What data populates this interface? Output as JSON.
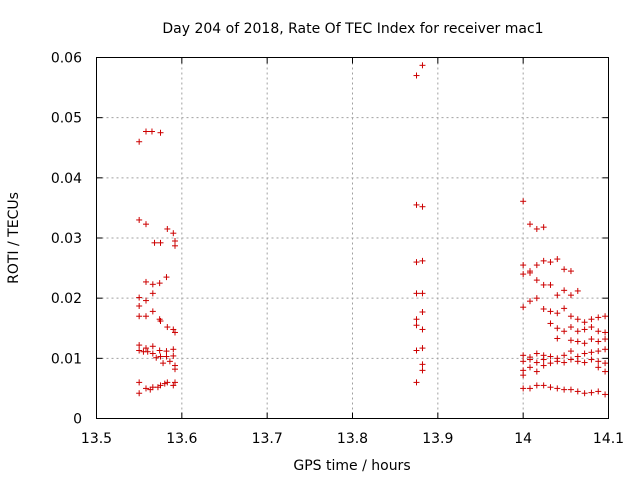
{
  "chart_data": {
    "type": "scatter",
    "title": "Day 204 of 2018, Rate Of TEC Index for receiver mac1",
    "xlabel": "GPS time / hours",
    "ylabel": "ROTI / TECUs",
    "xlim": [
      13.5,
      14.1
    ],
    "ylim": [
      0,
      0.06
    ],
    "x_ticks": [
      "13.5",
      "13.6",
      "13.7",
      "13.8",
      "13.9",
      "14",
      "14.1"
    ],
    "y_ticks": [
      "0",
      "0.01",
      "0.02",
      "0.03",
      "0.04",
      "0.05",
      "0.06"
    ],
    "grid": true,
    "marker": "+",
    "series": [
      {
        "name": "mac1",
        "color": "#cc0000",
        "points": [
          [
            13.55,
            0.046
          ],
          [
            13.558,
            0.0477
          ],
          [
            13.565,
            0.0477
          ],
          [
            13.575,
            0.0475
          ],
          [
            13.55,
            0.033
          ],
          [
            13.558,
            0.0323
          ],
          [
            13.568,
            0.0292
          ],
          [
            13.575,
            0.0292
          ],
          [
            13.583,
            0.0315
          ],
          [
            13.59,
            0.0308
          ],
          [
            13.592,
            0.0295
          ],
          [
            13.592,
            0.0287
          ],
          [
            13.558,
            0.0227
          ],
          [
            13.566,
            0.0223
          ],
          [
            13.574,
            0.0225
          ],
          [
            13.582,
            0.0235
          ],
          [
            13.566,
            0.0208
          ],
          [
            13.55,
            0.0201
          ],
          [
            13.558,
            0.0196
          ],
          [
            13.55,
            0.0187
          ],
          [
            13.566,
            0.0178
          ],
          [
            13.55,
            0.017
          ],
          [
            13.558,
            0.017
          ],
          [
            13.574,
            0.0165
          ],
          [
            13.575,
            0.0162
          ],
          [
            13.583,
            0.0152
          ],
          [
            13.59,
            0.0148
          ],
          [
            13.592,
            0.0143
          ],
          [
            13.55,
            0.0122
          ],
          [
            13.558,
            0.0117
          ],
          [
            13.566,
            0.012
          ],
          [
            13.574,
            0.0113
          ],
          [
            13.582,
            0.0112
          ],
          [
            13.59,
            0.0115
          ],
          [
            13.55,
            0.0113
          ],
          [
            13.555,
            0.0111
          ],
          [
            13.56,
            0.0111
          ],
          [
            13.566,
            0.0108
          ],
          [
            13.57,
            0.0101
          ],
          [
            13.575,
            0.0103
          ],
          [
            13.578,
            0.0092
          ],
          [
            13.582,
            0.0103
          ],
          [
            13.586,
            0.0095
          ],
          [
            13.59,
            0.0104
          ],
          [
            13.592,
            0.0088
          ],
          [
            13.592,
            0.0082
          ],
          [
            13.55,
            0.006
          ],
          [
            13.558,
            0.005
          ],
          [
            13.563,
            0.0048
          ],
          [
            13.566,
            0.0052
          ],
          [
            13.572,
            0.0052
          ],
          [
            13.575,
            0.0055
          ],
          [
            13.58,
            0.0058
          ],
          [
            13.583,
            0.006
          ],
          [
            13.59,
            0.0055
          ],
          [
            13.592,
            0.006
          ],
          [
            13.55,
            0.0042
          ],
          [
            13.875,
            0.057
          ],
          [
            13.882,
            0.0587
          ],
          [
            13.875,
            0.0355
          ],
          [
            13.882,
            0.0352
          ],
          [
            13.875,
            0.026
          ],
          [
            13.882,
            0.0262
          ],
          [
            13.875,
            0.0208
          ],
          [
            13.882,
            0.0208
          ],
          [
            13.875,
            0.0165
          ],
          [
            13.882,
            0.0177
          ],
          [
            13.875,
            0.0155
          ],
          [
            13.882,
            0.0148
          ],
          [
            13.875,
            0.0113
          ],
          [
            13.882,
            0.0117
          ],
          [
            13.882,
            0.009
          ],
          [
            13.882,
            0.008
          ],
          [
            13.875,
            0.006
          ],
          [
            14.0,
            0.0361
          ],
          [
            14.008,
            0.0323
          ],
          [
            14.016,
            0.0315
          ],
          [
            14.024,
            0.0318
          ],
          [
            14.0,
            0.0255
          ],
          [
            14.008,
            0.0245
          ],
          [
            14.016,
            0.0255
          ],
          [
            14.024,
            0.0262
          ],
          [
            14.032,
            0.026
          ],
          [
            14.04,
            0.0265
          ],
          [
            14.048,
            0.0248
          ],
          [
            14.056,
            0.0245
          ],
          [
            14.0,
            0.024
          ],
          [
            14.008,
            0.0242
          ],
          [
            14.016,
            0.023
          ],
          [
            14.024,
            0.0222
          ],
          [
            14.032,
            0.0222
          ],
          [
            14.04,
            0.0205
          ],
          [
            14.048,
            0.0213
          ],
          [
            14.056,
            0.0205
          ],
          [
            14.064,
            0.0212
          ],
          [
            14.0,
            0.0185
          ],
          [
            14.008,
            0.0195
          ],
          [
            14.016,
            0.02
          ],
          [
            14.024,
            0.0182
          ],
          [
            14.032,
            0.0178
          ],
          [
            14.04,
            0.0175
          ],
          [
            14.048,
            0.0183
          ],
          [
            14.056,
            0.017
          ],
          [
            14.064,
            0.0165
          ],
          [
            14.072,
            0.016
          ],
          [
            14.08,
            0.0165
          ],
          [
            14.088,
            0.0168
          ],
          [
            14.096,
            0.017
          ],
          [
            14.032,
            0.0158
          ],
          [
            14.04,
            0.015
          ],
          [
            14.048,
            0.0145
          ],
          [
            14.056,
            0.0152
          ],
          [
            14.064,
            0.0145
          ],
          [
            14.072,
            0.0148
          ],
          [
            14.08,
            0.0152
          ],
          [
            14.088,
            0.0145
          ],
          [
            14.096,
            0.0143
          ],
          [
            14.04,
            0.0133
          ],
          [
            14.056,
            0.013
          ],
          [
            14.064,
            0.0128
          ],
          [
            14.072,
            0.0125
          ],
          [
            14.08,
            0.0132
          ],
          [
            14.088,
            0.0128
          ],
          [
            14.096,
            0.0132
          ],
          [
            14.0,
            0.0105
          ],
          [
            14.008,
            0.0102
          ],
          [
            14.016,
            0.0108
          ],
          [
            14.024,
            0.0105
          ],
          [
            14.032,
            0.0103
          ],
          [
            14.04,
            0.01
          ],
          [
            14.048,
            0.0105
          ],
          [
            14.056,
            0.0112
          ],
          [
            14.064,
            0.0103
          ],
          [
            14.072,
            0.0108
          ],
          [
            14.08,
            0.011
          ],
          [
            14.088,
            0.0112
          ],
          [
            14.096,
            0.0115
          ],
          [
            14.0,
            0.0095
          ],
          [
            14.008,
            0.0098
          ],
          [
            14.016,
            0.0093
          ],
          [
            14.024,
            0.0098
          ],
          [
            14.032,
            0.0092
          ],
          [
            14.04,
            0.0095
          ],
          [
            14.048,
            0.0093
          ],
          [
            14.056,
            0.0098
          ],
          [
            14.064,
            0.0095
          ],
          [
            14.072,
            0.0093
          ],
          [
            14.08,
            0.0098
          ],
          [
            14.088,
            0.0095
          ],
          [
            14.096,
            0.0092
          ],
          [
            14.0,
            0.008
          ],
          [
            14.008,
            0.0085
          ],
          [
            14.016,
            0.0078
          ],
          [
            14.024,
            0.0088
          ],
          [
            14.088,
            0.0085
          ],
          [
            14.096,
            0.0078
          ],
          [
            14.0,
            0.0072
          ],
          [
            14.0,
            0.005
          ],
          [
            14.008,
            0.005
          ],
          [
            14.016,
            0.0055
          ],
          [
            14.024,
            0.0055
          ],
          [
            14.032,
            0.0052
          ],
          [
            14.04,
            0.005
          ],
          [
            14.048,
            0.0048
          ],
          [
            14.056,
            0.0048
          ],
          [
            14.064,
            0.0045
          ],
          [
            14.072,
            0.0042
          ],
          [
            14.08,
            0.0043
          ],
          [
            14.088,
            0.0045
          ],
          [
            14.096,
            0.004
          ]
        ]
      }
    ]
  }
}
